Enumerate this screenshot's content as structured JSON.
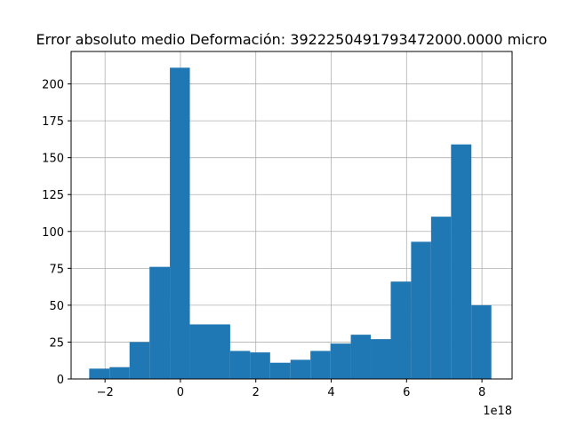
{
  "chart_data": {
    "type": "histogram",
    "title": "Error absoluto medio Deformación: 3922250491793472000.0000 micro",
    "xlabel": "",
    "ylabel": "",
    "x_offset_text": "1e18",
    "bar_color": "#1f77b4",
    "grid": true,
    "xlim": [
      -2.9,
      8.8
    ],
    "ylim": [
      0,
      222
    ],
    "x_ticks": [
      -2,
      0,
      2,
      4,
      6,
      8
    ],
    "y_ticks": [
      0,
      25,
      50,
      75,
      100,
      125,
      150,
      175,
      200
    ],
    "bins": [
      {
        "x0": -2.42,
        "x1": -1.88,
        "count": 7
      },
      {
        "x0": -1.88,
        "x1": -1.35,
        "count": 8
      },
      {
        "x0": -1.35,
        "x1": -0.82,
        "count": 25
      },
      {
        "x0": -0.82,
        "x1": -0.28,
        "count": 76
      },
      {
        "x0": -0.28,
        "x1": 0.25,
        "count": 211
      },
      {
        "x0": 0.25,
        "x1": 0.78,
        "count": 37
      },
      {
        "x0": 0.78,
        "x1": 1.32,
        "count": 37
      },
      {
        "x0": 1.32,
        "x1": 1.85,
        "count": 19
      },
      {
        "x0": 1.85,
        "x1": 2.38,
        "count": 18
      },
      {
        "x0": 2.38,
        "x1": 2.92,
        "count": 11
      },
      {
        "x0": 2.92,
        "x1": 3.45,
        "count": 13
      },
      {
        "x0": 3.45,
        "x1": 3.98,
        "count": 19
      },
      {
        "x0": 3.98,
        "x1": 4.52,
        "count": 24
      },
      {
        "x0": 4.52,
        "x1": 5.05,
        "count": 30
      },
      {
        "x0": 5.05,
        "x1": 5.58,
        "count": 27
      },
      {
        "x0": 5.58,
        "x1": 6.12,
        "count": 66
      },
      {
        "x0": 6.12,
        "x1": 6.65,
        "count": 93
      },
      {
        "x0": 6.65,
        "x1": 7.18,
        "count": 110
      },
      {
        "x0": 7.18,
        "x1": 7.72,
        "count": 159
      },
      {
        "x0": 7.72,
        "x1": 8.25,
        "count": 50
      }
    ]
  }
}
